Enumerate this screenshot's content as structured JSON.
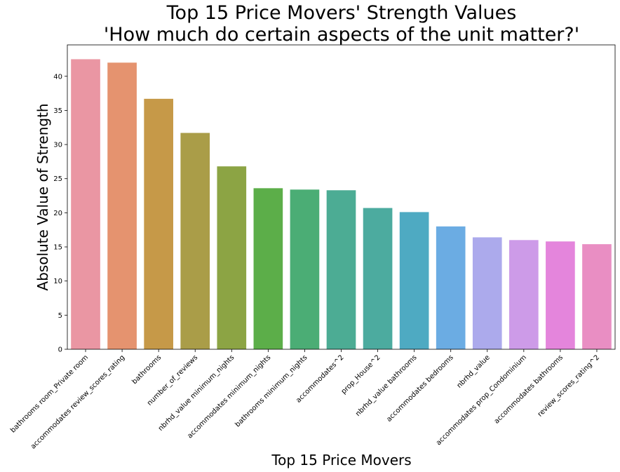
{
  "chart_data": {
    "type": "bar",
    "title": "Top 15 Price Movers' Strength Values",
    "subtitle": "'How much do certain aspects of the unit matter?'",
    "xlabel": "Top 15 Price Movers",
    "ylabel": "Absolute Value of Strength",
    "ylim": [
      0,
      44.6
    ],
    "yticks": [
      0,
      5,
      10,
      15,
      20,
      25,
      30,
      35,
      40
    ],
    "grid": false,
    "categories": [
      "bathrooms room_Private room",
      "accommodates review_scores_rating",
      "bathrooms",
      "number_of_reviews",
      "nbrhd_value minimum_nights",
      "accommodates minimum_nights",
      "bathrooms minimum_nights",
      "accommodates^2",
      "prop_House^2",
      "nbrhd_value bathrooms",
      "accommodates bedrooms",
      "nbrhd_value",
      "accommodates prop_Condominium",
      "accommodates bathrooms",
      "review_scores_rating^2"
    ],
    "values": [
      42.5,
      42.0,
      36.7,
      31.7,
      26.8,
      23.6,
      23.4,
      23.3,
      20.7,
      20.1,
      18.0,
      16.4,
      16.0,
      15.8,
      15.4
    ],
    "colors": [
      "#ea96a3",
      "#e5936f",
      "#c69948",
      "#aa9d48",
      "#8ca444",
      "#5cae49",
      "#4bad75",
      "#4cac94",
      "#4cab9f",
      "#4eaac2",
      "#6bace3",
      "#acaaec",
      "#cd9be8",
      "#e485dc",
      "#e98ec3"
    ]
  }
}
